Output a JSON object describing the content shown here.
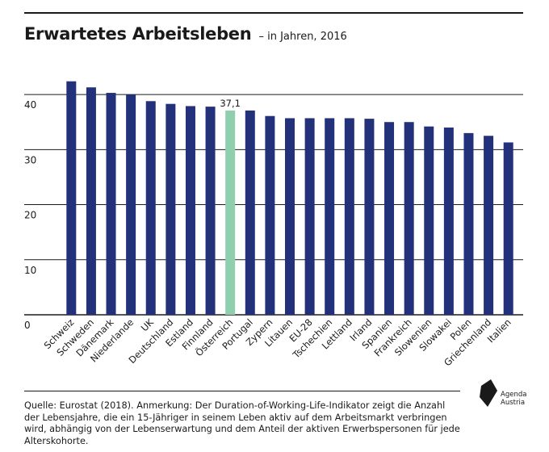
{
  "header": {
    "title": "Erwartetes Arbeitsleben",
    "subtitle": "– in Jahren, 2016"
  },
  "chart_data": {
    "type": "bar",
    "title": "Erwartetes Arbeitsleben",
    "subtitle": "– in Jahren, 2016",
    "xlabel": "",
    "ylabel": "",
    "ylim": [
      0,
      45
    ],
    "yticks": [
      0,
      10,
      20,
      30,
      40
    ],
    "grid": true,
    "categories": [
      "Schweiz",
      "Schweden",
      "Dänemark",
      "Niederlande",
      "UK",
      "Deutschland",
      "Estland",
      "Finnland",
      "Österreich",
      "Portugal",
      "Zypern",
      "Litauen",
      "EU-28",
      "Tschechien",
      "Lettland",
      "Irland",
      "Spanien",
      "Frankreich",
      "Slowenien",
      "Slowakei",
      "Polen",
      "Griechenland",
      "Italien"
    ],
    "values": [
      42.4,
      41.3,
      40.3,
      40.0,
      38.8,
      38.3,
      37.9,
      37.8,
      37.1,
      37.1,
      36.1,
      35.7,
      35.7,
      35.7,
      35.7,
      35.6,
      35.0,
      35.0,
      34.2,
      34.0,
      33.0,
      32.5,
      31.3
    ],
    "highlight_index": 8,
    "data_labels": [
      {
        "index": 8,
        "text": "37,1"
      }
    ],
    "colors": {
      "bar": "#23307a",
      "highlight": "#8fcfae"
    }
  },
  "footer": {
    "source_note": "Quelle: Eurostat (2018). Anmerkung: Der Duration-of-Working-Life-Indikator zeigt die Anzahl der Lebensjahre, die ein 15-Jähriger in seinem Leben aktiv auf dem Arbeitsmarkt verbringen wird, abhängig von der Lebenserwartung und dem Anteil der aktiven Erwerbspersonen für jede Alterskohorte.",
    "logo_text_line1": "Agenda",
    "logo_text_line2": "Austria"
  }
}
